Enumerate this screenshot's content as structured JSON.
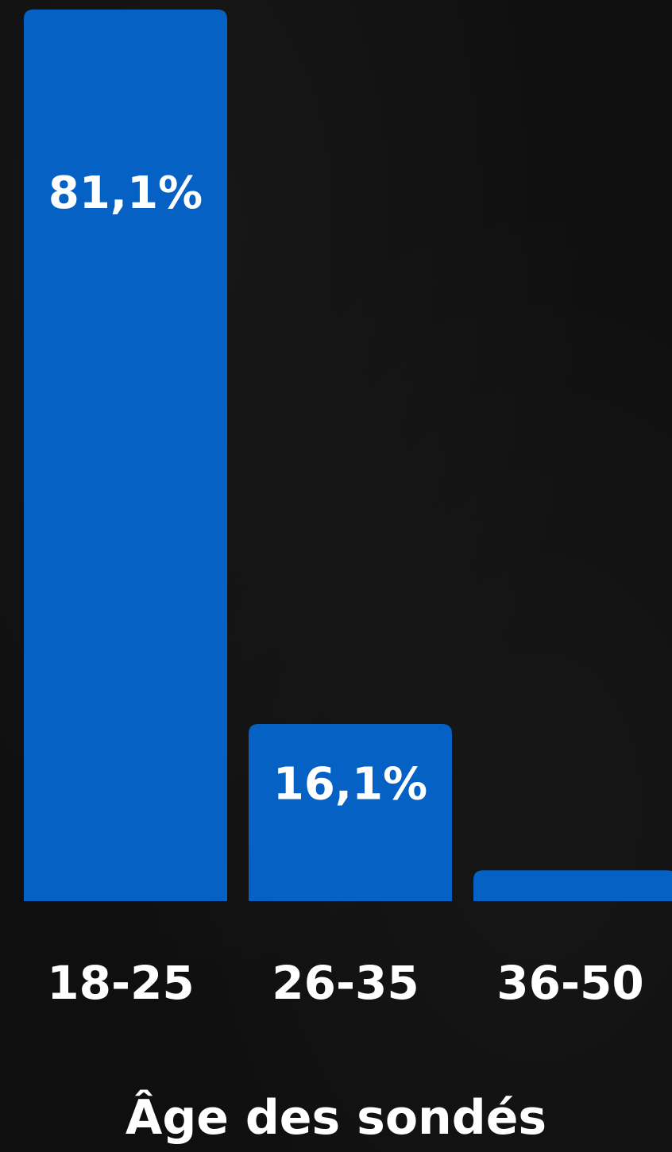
{
  "chart_data": {
    "type": "bar",
    "title": "Âge des sondés",
    "categories": [
      "18-25",
      "26-35",
      "36-50"
    ],
    "values": [
      81.1,
      16.1,
      2.8
    ],
    "data_labels": [
      "81,1%",
      "16,1%",
      ""
    ],
    "unit": "%",
    "ylim": [
      0,
      81.1
    ],
    "grid": false,
    "legend": "none",
    "bar_color": "#0561c4",
    "background_color": "#0f0f0f",
    "text_color": "#ffffff"
  }
}
